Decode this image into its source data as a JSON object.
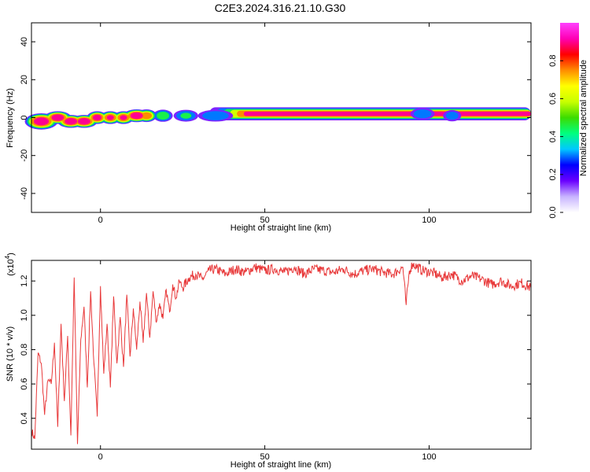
{
  "title": "C2E3.2024.316.21.10.G30",
  "colors": {
    "snr_line": "#e8393a",
    "axes": "#000000"
  },
  "chart_data": [
    {
      "type": "heatmap",
      "name": "spectrogram",
      "xlabel": "Height of straight line (km)",
      "ylabel": "Frequency (Hz)",
      "xlim": [
        -21,
        131
      ],
      "ylim": [
        -50,
        50
      ],
      "x_ticks": [
        {
          "value": 0,
          "label": "0"
        },
        {
          "value": 50,
          "label": "50"
        },
        {
          "value": 100,
          "label": "100"
        }
      ],
      "y_ticks": [
        {
          "value": -40,
          "label": "-40"
        },
        {
          "value": -20,
          "label": "-20"
        },
        {
          "value": 0,
          "label": "0"
        },
        {
          "value": 20,
          "label": "20"
        },
        {
          "value": 40,
          "label": "40"
        }
      ],
      "colorbar": {
        "label": "Normalized spectral amplitude",
        "range": [
          0,
          1
        ],
        "ticks": [
          {
            "value": 0.0,
            "label": "0.0"
          },
          {
            "value": 0.2,
            "label": "0.2"
          },
          {
            "value": 0.4,
            "label": "0.4"
          },
          {
            "value": 0.6,
            "label": "0.6"
          },
          {
            "value": 0.8,
            "label": "0.8"
          }
        ],
        "colormap": [
          "#ffffff",
          "#c8b4ff",
          "#6a00ff",
          "#0000ff",
          "#00c8ff",
          "#00ff7f",
          "#3cdc00",
          "#c8ff00",
          "#ffff00",
          "#ff8c00",
          "#ff0000",
          "#ff00b4",
          "#ff40ff"
        ]
      },
      "blobs": [
        {
          "x": -18,
          "f": -2,
          "w": 5,
          "fw": 4,
          "a": 1.0
        },
        {
          "x": -13,
          "f": 0,
          "w": 4,
          "fw": 3,
          "a": 1.0
        },
        {
          "x": -9,
          "f": -2,
          "w": 4,
          "fw": 3,
          "a": 1.0
        },
        {
          "x": -5,
          "f": -2,
          "w": 4,
          "fw": 3,
          "a": 1.0
        },
        {
          "x": -1,
          "f": 0,
          "w": 3,
          "fw": 3,
          "a": 0.95
        },
        {
          "x": 3,
          "f": 0,
          "w": 3,
          "fw": 3,
          "a": 0.9
        },
        {
          "x": 7,
          "f": 0,
          "w": 3,
          "fw": 3,
          "a": 0.9
        },
        {
          "x": 11,
          "f": 1,
          "w": 4,
          "fw": 3,
          "a": 1.0
        },
        {
          "x": 14,
          "f": 1,
          "w": 3,
          "fw": 3,
          "a": 0.85
        },
        {
          "x": 19,
          "f": 1,
          "w": 3,
          "fw": 3,
          "a": 0.55
        },
        {
          "x": 26,
          "f": 1,
          "w": 4,
          "fw": 3,
          "a": 0.45
        },
        {
          "x": 35,
          "f": 1,
          "w": 6,
          "fw": 3,
          "a": 0.42
        },
        {
          "x": 98,
          "f": 2,
          "w": 4,
          "fw": 3,
          "a": 0.4
        },
        {
          "x": 107,
          "f": 1,
          "w": 3,
          "fw": 3,
          "a": 0.35
        }
      ],
      "ridge": {
        "x_start": 45,
        "x_end": 131,
        "f": 2,
        "a": 1.0
      }
    },
    {
      "type": "line",
      "name": "snr",
      "xlabel": "Height of straight line (km)",
      "ylabel": "SNR (10 * v/v)",
      "y_scale_label": "(x10",
      "y_scale_exp": "4",
      "xlim": [
        -21,
        131
      ],
      "ylim": [
        0.22,
        1.32
      ],
      "x_ticks": [
        {
          "value": 0,
          "label": "0"
        },
        {
          "value": 50,
          "label": "50"
        },
        {
          "value": 100,
          "label": "100"
        }
      ],
      "y_ticks": [
        {
          "value": 0.4,
          "label": "0.4"
        },
        {
          "value": 0.6,
          "label": "0.6"
        },
        {
          "value": 0.8,
          "label": "0.8"
        },
        {
          "value": 1.0,
          "label": "1.0"
        },
        {
          "value": 1.2,
          "label": "1.2"
        }
      ],
      "series": [
        {
          "x": [
            -21,
            -20,
            -19,
            -18,
            -17,
            -16,
            -15,
            -14,
            -13,
            -12,
            -11,
            -10,
            -9,
            -8,
            -7,
            -6,
            -5,
            -4,
            -3,
            -2,
            -1,
            0,
            1,
            2,
            3,
            4,
            5,
            6,
            7,
            8,
            9,
            10,
            11,
            12,
            13,
            14,
            15,
            16,
            17,
            18,
            19,
            20,
            21,
            22,
            23,
            24,
            25,
            27,
            29,
            31,
            33,
            35,
            38,
            41,
            44,
            47,
            50,
            53,
            56,
            59,
            62,
            65,
            68,
            71,
            74,
            77,
            80,
            83,
            86,
            89,
            92,
            93,
            94,
            95,
            98,
            101,
            104,
            107,
            110,
            113,
            116,
            119,
            122,
            125,
            128,
            131
          ],
          "y": [
            0.33,
            0.28,
            0.78,
            0.72,
            0.42,
            0.62,
            0.6,
            0.84,
            0.35,
            0.95,
            0.5,
            0.88,
            0.3,
            1.22,
            0.25,
            0.86,
            1.05,
            0.58,
            1.14,
            0.72,
            0.41,
            1.17,
            0.66,
            0.95,
            0.58,
            1.11,
            0.72,
            0.99,
            0.7,
            1.12,
            0.76,
            1.04,
            0.8,
            1.08,
            0.84,
            1.13,
            0.87,
            1.14,
            0.96,
            1.07,
            0.98,
            1.15,
            1.02,
            1.18,
            1.1,
            1.2,
            1.16,
            1.22,
            1.24,
            1.21,
            1.26,
            1.27,
            1.24,
            1.27,
            1.25,
            1.28,
            1.26,
            1.27,
            1.25,
            1.28,
            1.24,
            1.27,
            1.26,
            1.25,
            1.27,
            1.24,
            1.26,
            1.27,
            1.25,
            1.24,
            1.28,
            1.06,
            1.26,
            1.3,
            1.26,
            1.25,
            1.22,
            1.24,
            1.2,
            1.23,
            1.21,
            1.18,
            1.2,
            1.17,
            1.19,
            1.16
          ]
        }
      ]
    }
  ]
}
